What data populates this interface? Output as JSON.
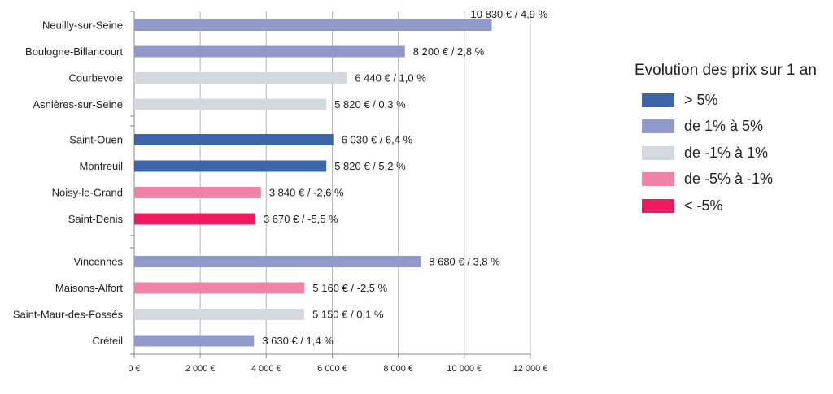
{
  "chart_data": {
    "type": "bar",
    "orientation": "horizontal",
    "xlim": [
      0,
      12000
    ],
    "x_ticks": [
      "0 €",
      "2 000 €",
      "4 000 €",
      "6 000 €",
      "8 000 €",
      "10 000 €",
      "12 000 €"
    ],
    "x_tick_values": [
      0,
      2000,
      4000,
      6000,
      8000,
      10000,
      12000
    ],
    "grid": "vertical",
    "groups": [
      {
        "bars": [
          {
            "category": "Neuilly-sur-Seine",
            "value": 10830,
            "label": "10 830 € / 4,9 %",
            "class": "c2"
          },
          {
            "category": "Boulogne-Billancourt",
            "value": 8200,
            "label": "8 200 € / 2,8 %",
            "class": "c2"
          },
          {
            "category": "Courbevoie",
            "value": 6440,
            "label": "6 440 € / 1,0 %",
            "class": "c3"
          },
          {
            "category": "Asnières-sur-Seine",
            "value": 5820,
            "label": "5 820 € / 0,3 %",
            "class": "c3"
          }
        ]
      },
      {
        "bars": [
          {
            "category": "Saint-Ouen",
            "value": 6030,
            "label": "6 030 € / 6,4 %",
            "class": "c1"
          },
          {
            "category": "Montreuil",
            "value": 5820,
            "label": "5 820 € / 5,2 %",
            "class": "c1"
          },
          {
            "category": "Noisy-le-Grand",
            "value": 3840,
            "label": "3 840 € / -2,6 %",
            "class": "c4"
          },
          {
            "category": "Saint-Denis",
            "value": 3670,
            "label": "3 670 € / -5,5 %",
            "class": "c5"
          }
        ]
      },
      {
        "bars": [
          {
            "category": "Vincennes",
            "value": 8680,
            "label": "8 680 € / 3,8 %",
            "class": "c2"
          },
          {
            "category": "Maisons-Alfort",
            "value": 5160,
            "label": "5 160 € / -2,5 %",
            "class": "c4"
          },
          {
            "category": "Saint-Maur-des-Fossés",
            "value": 5150,
            "label": "5 150 € / 0,1 %",
            "class": "c3"
          },
          {
            "category": "Créteil",
            "value": 3630,
            "label": "3 630 € / 1,4 %",
            "class": "c2"
          }
        ]
      }
    ],
    "legend": {
      "title": "Evolution des prix sur 1 an",
      "position": "right",
      "items": [
        {
          "key": "c1",
          "label": "> 5%",
          "color": "#3d65a8"
        },
        {
          "key": "c2",
          "label": "de 1% à 5%",
          "color": "#9099cc"
        },
        {
          "key": "c3",
          "label": "de -1% à 1%",
          "color": "#d4d9df"
        },
        {
          "key": "c4",
          "label": "de -5% à -1%",
          "color": "#ee82a8"
        },
        {
          "key": "c5",
          "label": "< -5%",
          "color": "#ee1c5e"
        }
      ]
    }
  }
}
